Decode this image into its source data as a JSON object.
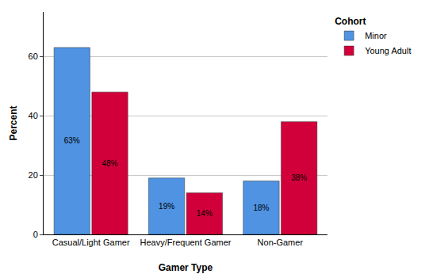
{
  "chart_data": {
    "type": "bar",
    "x_label": "Gamer Type",
    "y_label": "Percent",
    "legend_title": "Cohort",
    "legend": "top right",
    "categories": [
      "Casual/Light Gamer",
      "Heavy/Frequent Gamer",
      "Non-Gamer"
    ],
    "series": [
      {
        "name": "Minor",
        "color": "#4f93e2",
        "values": [
          63,
          19,
          18
        ],
        "value_labels": [
          "63%",
          "19%",
          "18%"
        ]
      },
      {
        "name": "Young Adult",
        "color": "#d2003a",
        "values": [
          48,
          14,
          38
        ],
        "value_labels": [
          "48%",
          "14%",
          "38%"
        ]
      }
    ],
    "data_labels": true,
    "ylim": [
      0,
      75
    ],
    "yticks": [
      0,
      20,
      40,
      60
    ],
    "grid": true
  }
}
